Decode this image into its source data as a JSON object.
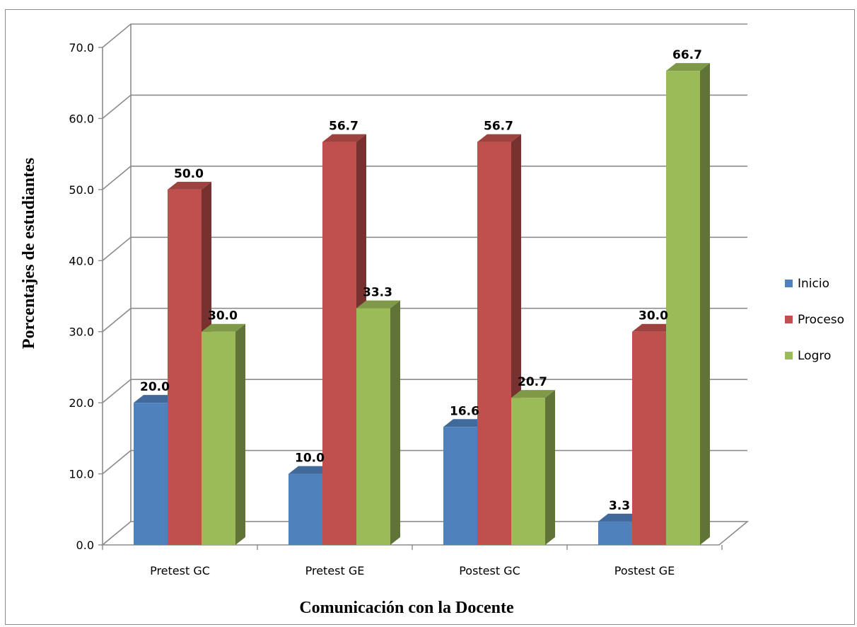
{
  "chart_data": {
    "type": "bar",
    "categories": [
      "Pretest GC",
      "Pretest GE",
      "Postest GC",
      "Postest GE"
    ],
    "series": [
      {
        "name": "Inicio",
        "color": "#4F81BD",
        "values": [
          20.0,
          10.0,
          16.6,
          3.3
        ]
      },
      {
        "name": "Proceso",
        "color": "#C0504D",
        "values": [
          50.0,
          56.7,
          56.7,
          30.0
        ]
      },
      {
        "name": "Logro",
        "color": "#9BBB59",
        "values": [
          30.0,
          33.3,
          20.7,
          66.7
        ]
      }
    ],
    "data_labels": [
      [
        "20.0",
        "10.0",
        "16.6",
        "3.3"
      ],
      [
        "50.0",
        "56.7",
        "56.7",
        "30.0"
      ],
      [
        "30.0",
        "33.3",
        "20.7",
        "66.7"
      ]
    ],
    "xlabel": "Comunicación  con la Docente",
    "ylabel": "Porcentajes de estudiantes",
    "ylim": [
      0,
      70
    ],
    "yticks": [
      "0.0",
      "10.0",
      "20.0",
      "30.0",
      "40.0",
      "50.0",
      "60.0",
      "70.0"
    ],
    "grid": true,
    "legend_position": "right",
    "style": "3d"
  }
}
